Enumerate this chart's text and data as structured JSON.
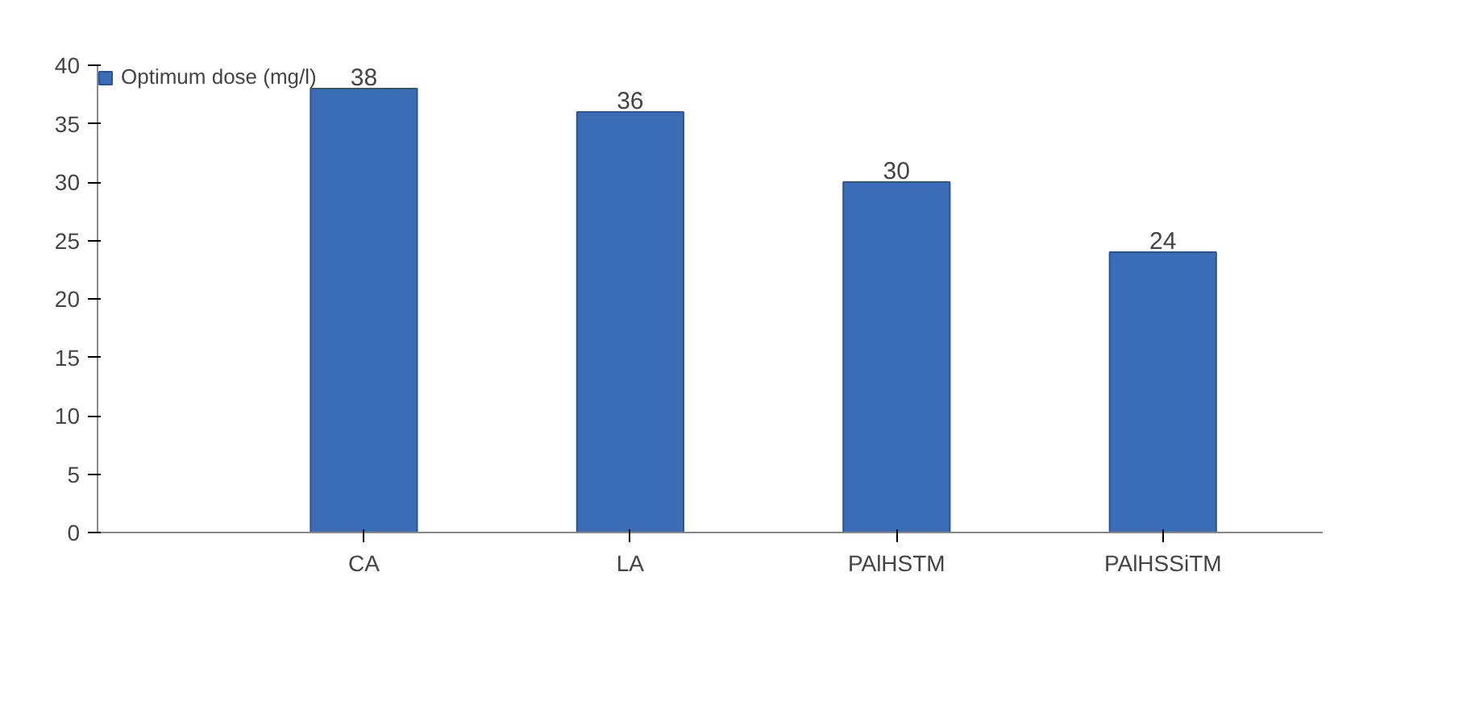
{
  "chart_data": {
    "type": "bar",
    "categories": [
      "CA",
      "LA",
      "PAlHSTM",
      "PAlHSSiTM"
    ],
    "series": [
      {
        "name": "Optimum dose (mg/l)",
        "color": "#3a6db5",
        "values": [
          38,
          36,
          30,
          24
        ]
      }
    ],
    "ylim": [
      0,
      40
    ],
    "yticks": [
      0,
      5,
      10,
      15,
      20,
      25,
      30,
      35,
      40
    ],
    "data_labels": true,
    "legend": "top left",
    "grid": false
  }
}
